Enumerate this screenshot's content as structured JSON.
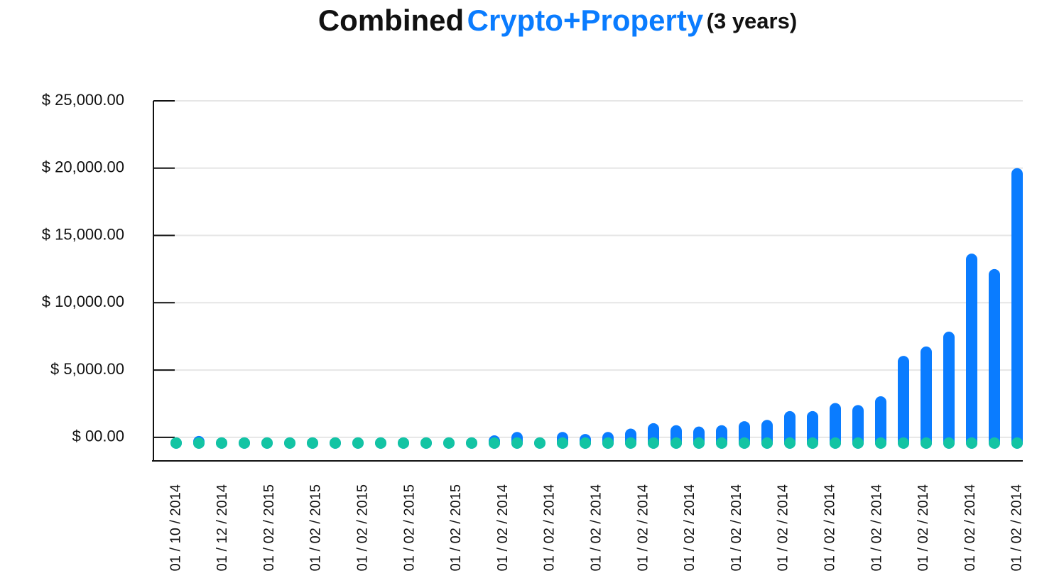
{
  "chart_data": {
    "type": "bar",
    "title": "Combined",
    "title_highlight": "Crypto+Property",
    "title_note": "(3 years)",
    "categories": [
      "01 / 10 / 2014",
      null,
      "01 / 12 / 2014",
      null,
      "01 / 02 / 2015",
      null,
      "01 / 02 / 2015",
      null,
      "01 / 02 / 2015",
      null,
      "01 / 02 / 2015",
      null,
      "01 / 02 / 2015",
      null,
      "01 / 02 / 2014",
      null,
      "01 / 02 / 2014",
      null,
      "01 / 02 / 2014",
      null,
      "01 / 02 / 2014",
      null,
      "01 / 02 / 2014",
      null,
      "01 / 02 / 2014",
      null,
      "01 / 02 / 2014",
      null,
      "01 / 02 / 2014",
      null,
      "01 / 02 / 2014",
      null,
      "01 / 02 / 2014",
      null,
      "01 / 02 / 2014",
      null,
      "01 / 02 / 2014",
      null
    ],
    "series": [
      {
        "color": "#0a7cff",
        "values": [
          0,
          100,
          0,
          0,
          0,
          0,
          0,
          0,
          0,
          0,
          0,
          0,
          0,
          0,
          150,
          400,
          0,
          400,
          250,
          400,
          650,
          1050,
          900,
          800,
          900,
          1200,
          1300,
          1950,
          1950,
          2550,
          2400,
          3050,
          6050,
          6750,
          7850,
          13650,
          12500,
          20000
        ]
      },
      {
        "color": "#13c4a3",
        "values": [
          0,
          0,
          0,
          0,
          0,
          0,
          0,
          0,
          0,
          0,
          0,
          0,
          0,
          0,
          0,
          0,
          0,
          0,
          0,
          0,
          0,
          0,
          0,
          0,
          0,
          0,
          0,
          0,
          0,
          0,
          0,
          0,
          0,
          0,
          0,
          0,
          0,
          0
        ]
      }
    ],
    "ylim": [
      -1750,
      25000
    ],
    "yticks": [
      {
        "value": 0,
        "label": "$ 00.00"
      },
      {
        "value": 5000,
        "label": "$ 5,000.00"
      },
      {
        "value": 10000,
        "label": "$ 10,000.00"
      },
      {
        "value": 15000,
        "label": "$ 15,000.00"
      },
      {
        "value": 20000,
        "label": "$ 20,000.00"
      },
      {
        "value": 25000,
        "label": "$ 25,000.00"
      }
    ],
    "grid": true
  }
}
